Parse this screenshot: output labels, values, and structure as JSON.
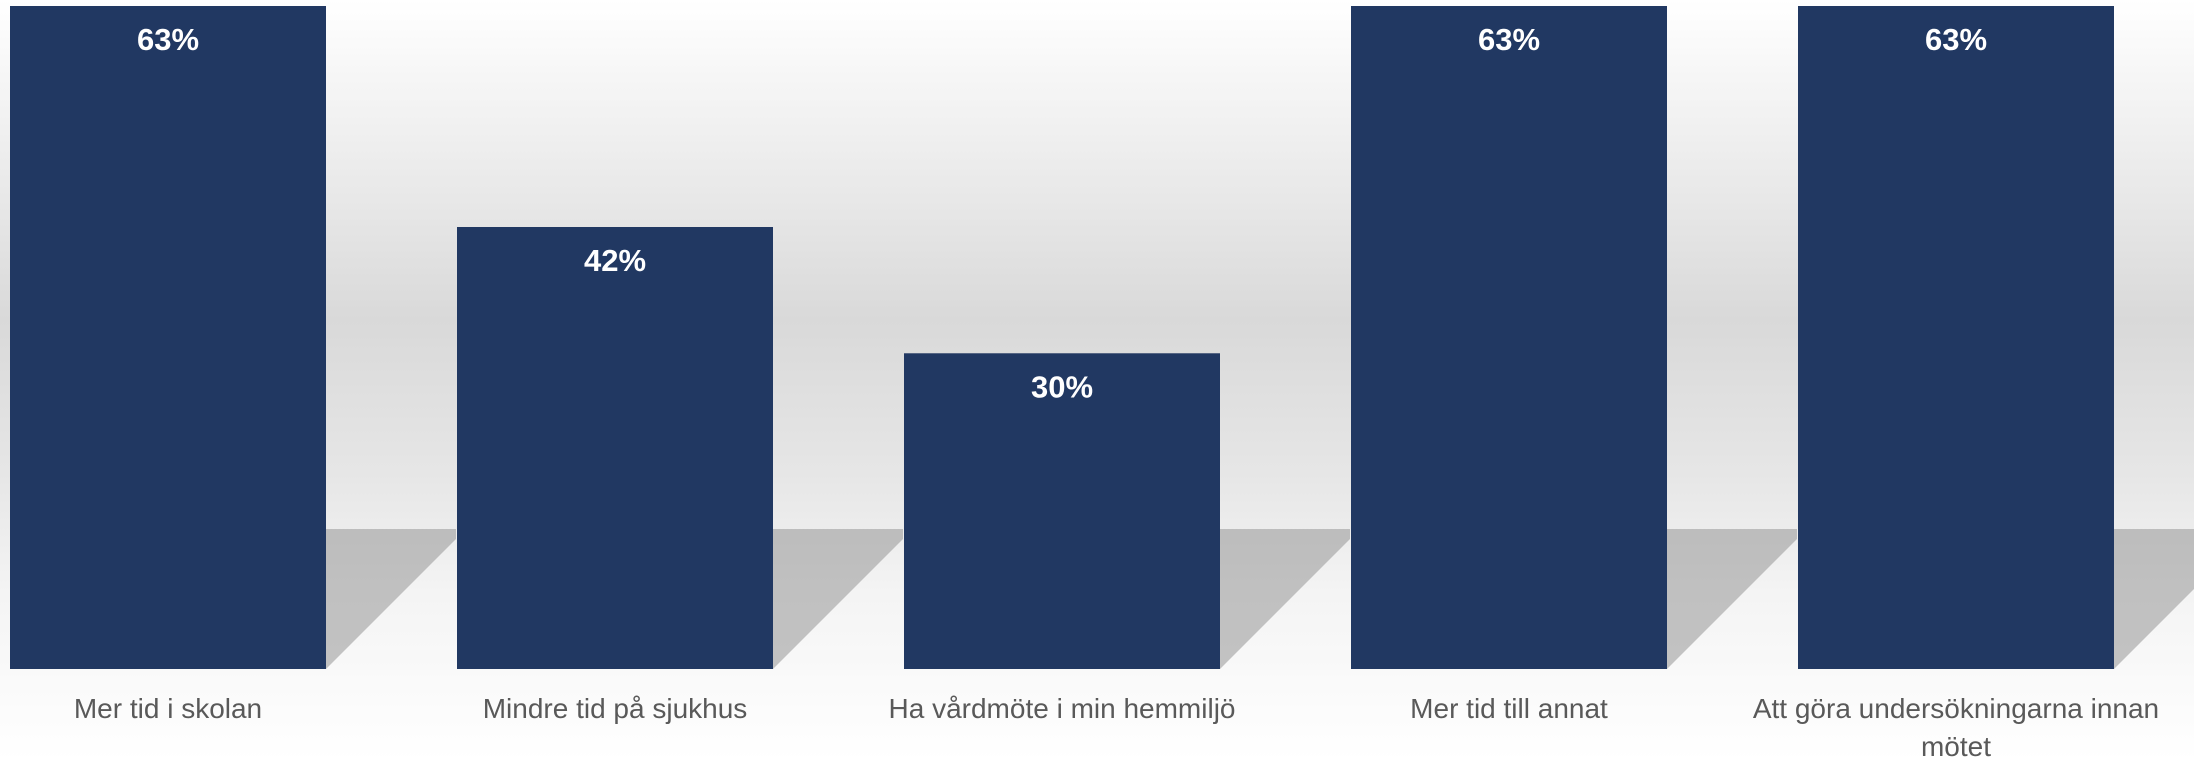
{
  "chart_data": {
    "type": "bar",
    "categories": [
      "Mer tid i skolan",
      "Mindre tid på sjukhus",
      "Ha vårdmöte i min hemmiljö",
      "Mer tid till annat",
      "Att göra undersökningarna innan mötet"
    ],
    "values": [
      63,
      42,
      30,
      63,
      63
    ],
    "value_labels": [
      "63%",
      "42%",
      "30%",
      "63%",
      "63%"
    ],
    "color": "#213862"
  }
}
